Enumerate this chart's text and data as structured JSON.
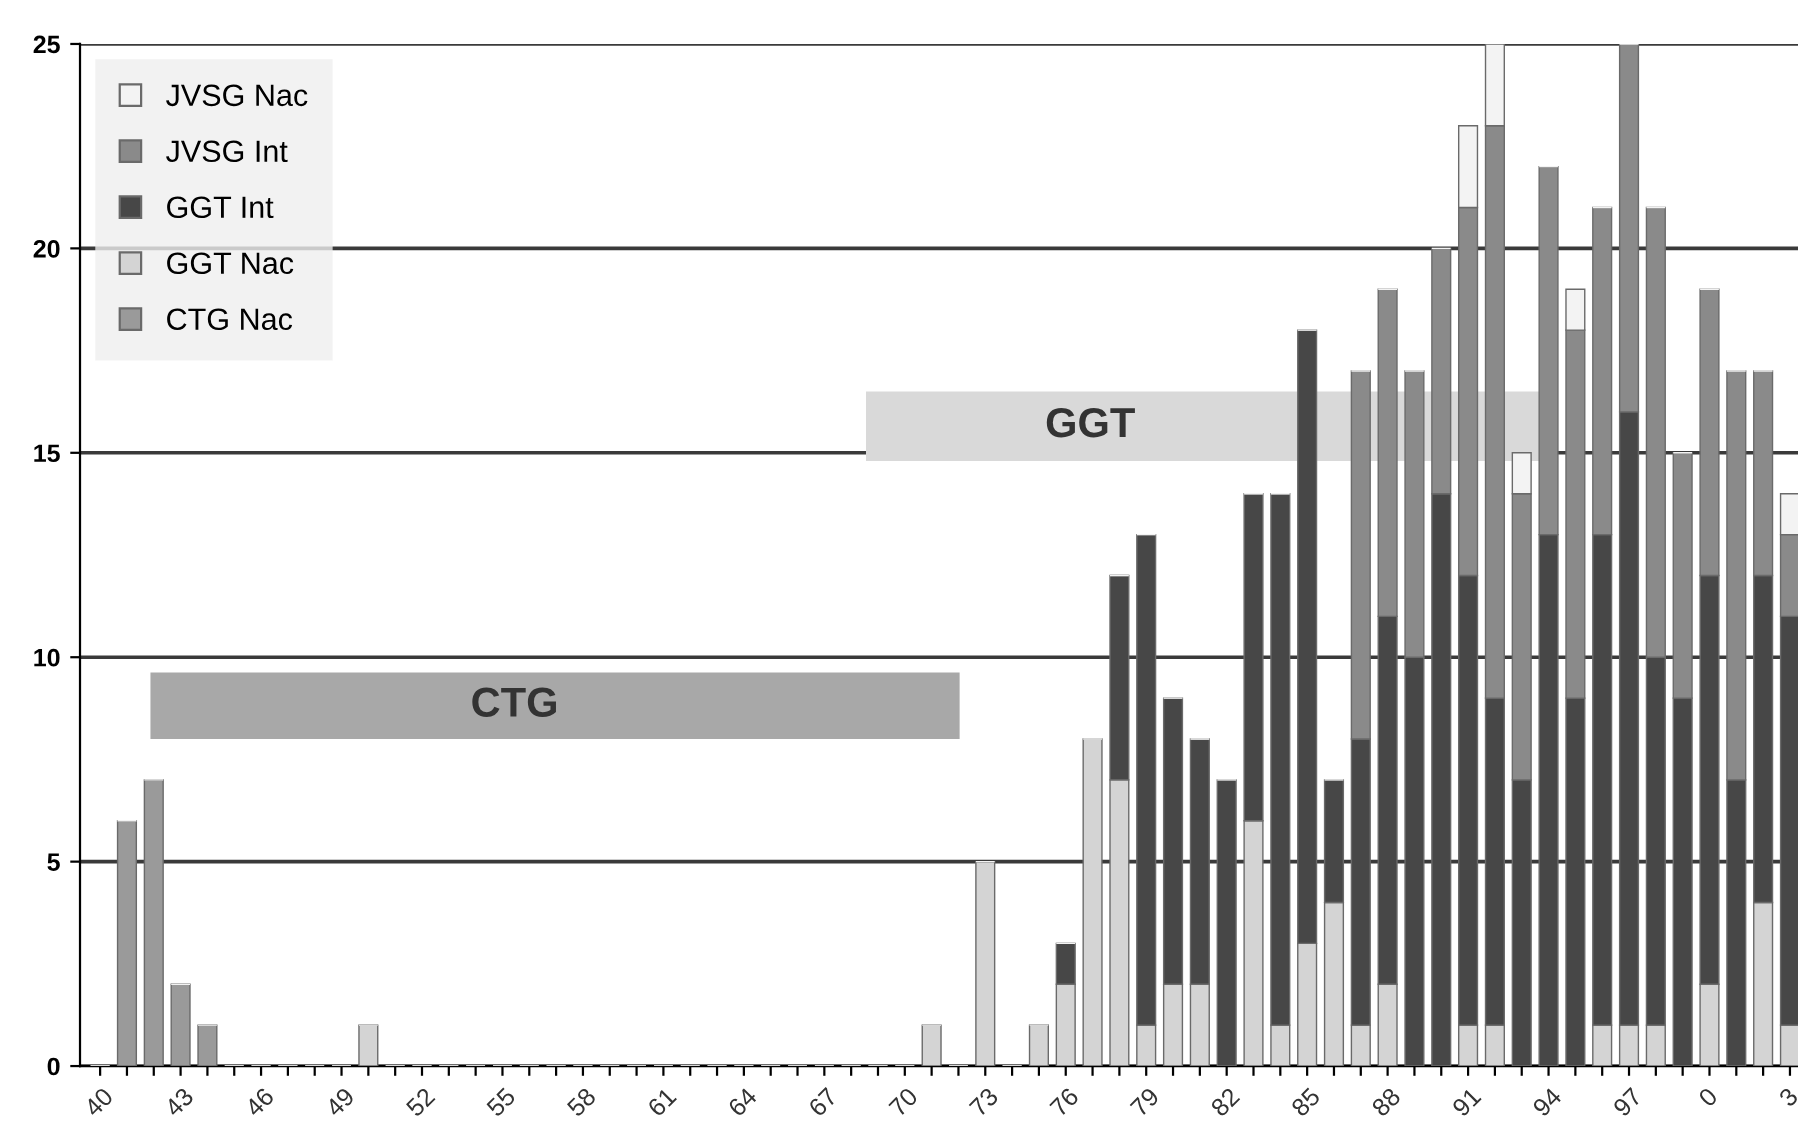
{
  "chart_data": {
    "type": "bar",
    "stacked": true,
    "categories": [
      "40",
      null,
      null,
      "43",
      null,
      null,
      "46",
      null,
      null,
      "49",
      null,
      null,
      "52",
      null,
      null,
      "55",
      null,
      null,
      "58",
      null,
      null,
      "61",
      null,
      null,
      "64",
      null,
      null,
      "67",
      null,
      null,
      "70",
      null,
      null,
      "73",
      null,
      null,
      "76",
      null,
      null,
      "79",
      null,
      null,
      "82",
      null,
      null,
      "85",
      null,
      null,
      "88",
      null,
      null,
      "91",
      null,
      null,
      "94",
      null,
      null,
      "97",
      null,
      null,
      "0",
      null,
      null,
      "3"
    ],
    "series": [
      {
        "name": "CTG Nac",
        "color": "#9a9a9a",
        "values": [
          0,
          6,
          7,
          2,
          1,
          0,
          0,
          0,
          0,
          0,
          0,
          0,
          0,
          0,
          0,
          0,
          0,
          0,
          0,
          0,
          0,
          0,
          0,
          0,
          0,
          0,
          0,
          0,
          0,
          0,
          0,
          0,
          0,
          0,
          0,
          0,
          0,
          0,
          0,
          0,
          0,
          0,
          0,
          0,
          0,
          0,
          0,
          0,
          0,
          0,
          0,
          0,
          0,
          0,
          0,
          0,
          0,
          0,
          0,
          0,
          0,
          0,
          0,
          0
        ]
      },
      {
        "name": "GGT Nac",
        "color": "#d4d4d4",
        "values": [
          0,
          0,
          0,
          0,
          0,
          0,
          0,
          0,
          0,
          0,
          1,
          0,
          0,
          0,
          0,
          0,
          0,
          0,
          0,
          0,
          0,
          0,
          0,
          0,
          0,
          0,
          0,
          0,
          0,
          0,
          0,
          1,
          0,
          5,
          0,
          1,
          2,
          8,
          7,
          1,
          2,
          2,
          0,
          6,
          1,
          3,
          4,
          1,
          2,
          0,
          0,
          1,
          1,
          0,
          0,
          0,
          1,
          1,
          1,
          0,
          2,
          0,
          4,
          1
        ]
      },
      {
        "name": "GGT Int",
        "color": "#474747",
        "values": [
          0,
          0,
          0,
          0,
          0,
          0,
          0,
          0,
          0,
          0,
          0,
          0,
          0,
          0,
          0,
          0,
          0,
          0,
          0,
          0,
          0,
          0,
          0,
          0,
          0,
          0,
          0,
          0,
          0,
          0,
          0,
          0,
          0,
          0,
          0,
          0,
          1,
          0,
          5,
          12,
          7,
          6,
          7,
          8,
          13,
          15,
          3,
          7,
          9,
          10,
          14,
          11,
          8,
          7,
          13,
          9,
          12,
          15,
          9,
          9,
          10,
          7,
          8,
          10
        ]
      },
      {
        "name": "JVSG Int",
        "color": "#8a8a8a",
        "values": [
          0,
          0,
          0,
          0,
          0,
          0,
          0,
          0,
          0,
          0,
          0,
          0,
          0,
          0,
          0,
          0,
          0,
          0,
          0,
          0,
          0,
          0,
          0,
          0,
          0,
          0,
          0,
          0,
          0,
          0,
          0,
          0,
          0,
          0,
          0,
          0,
          0,
          0,
          0,
          0,
          0,
          0,
          0,
          0,
          0,
          0,
          0,
          9,
          8,
          7,
          6,
          9,
          14,
          7,
          9,
          9,
          8,
          9,
          11,
          6,
          7,
          10,
          5,
          2
        ]
      },
      {
        "name": "JVSG Nac",
        "color": "#f3f3f3",
        "values": [
          0,
          0,
          0,
          0,
          0,
          0,
          0,
          0,
          0,
          0,
          0,
          0,
          0,
          0,
          0,
          0,
          0,
          0,
          0,
          0,
          0,
          0,
          0,
          0,
          0,
          0,
          0,
          0,
          0,
          0,
          0,
          0,
          0,
          0,
          0,
          0,
          0,
          0,
          0,
          0,
          0,
          0,
          0,
          0,
          0,
          0,
          0,
          0,
          0,
          0,
          0,
          2,
          2,
          1,
          0,
          1,
          0,
          0,
          0,
          0,
          0,
          0,
          0,
          1
        ]
      }
    ],
    "ylim": [
      0,
      25
    ],
    "yticks": [
      0,
      5,
      10,
      15,
      20,
      25
    ],
    "grid": "y",
    "legend": "top left",
    "annotations": [
      "CTG",
      "GGT"
    ]
  }
}
